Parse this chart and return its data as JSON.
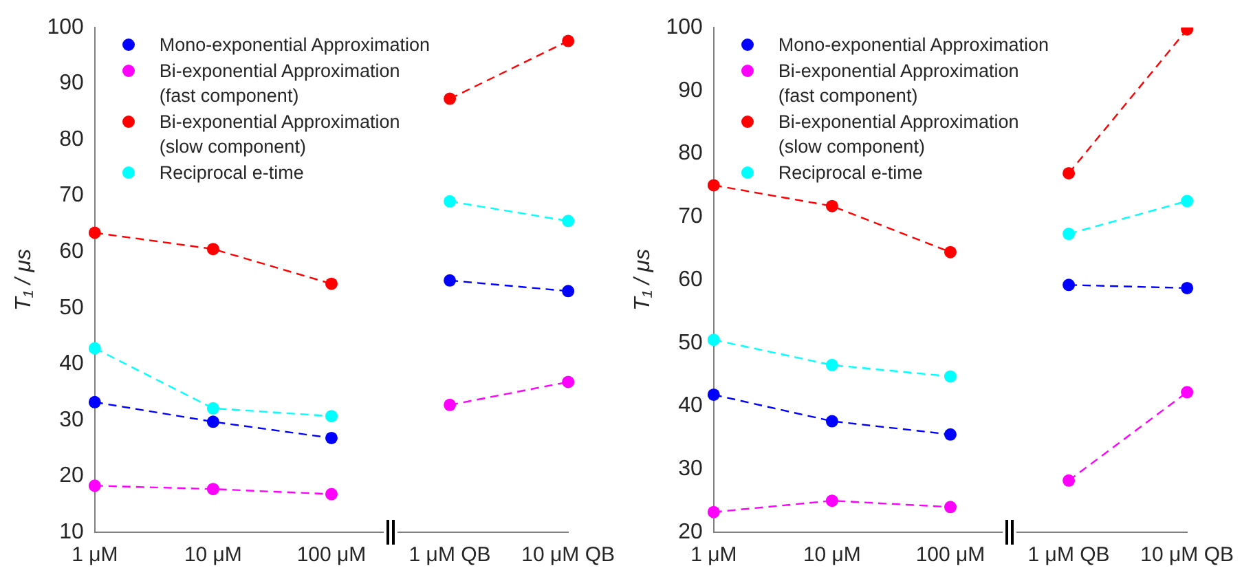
{
  "chart_data": [
    {
      "type": "line",
      "categories": [
        "1 μM",
        "10 μM",
        "100 μM",
        "1 μM QB",
        "10 μM QB"
      ],
      "ylabel": "T₁ / μs",
      "ylim": [
        10,
        100
      ],
      "yticks": [
        10,
        20,
        30,
        40,
        50,
        60,
        70,
        80,
        90,
        100
      ],
      "grid": false,
      "legend": "top left",
      "marker": "circle",
      "line_style": "dashed",
      "series": [
        {
          "name": "Mono-exponential Approximation",
          "color": "#0000ff",
          "values": [
            33.2,
            29.7,
            26.8,
            54.9,
            53.0
          ]
        },
        {
          "name": "Bi-exponential Approximation (fast component)",
          "color": "#ff00ff",
          "values": [
            18.3,
            17.7,
            16.8,
            32.7,
            36.8
          ]
        },
        {
          "name": "Bi-exponential Approximation (slow component)",
          "color": "#ff0000",
          "values": [
            63.4,
            60.5,
            54.3,
            87.3,
            97.6
          ]
        },
        {
          "name": "Reciprocal e-time",
          "color": "#00ffff",
          "values": [
            42.8,
            32.1,
            30.7,
            69.0,
            65.5
          ]
        }
      ]
    },
    {
      "type": "line",
      "categories": [
        "1 μM",
        "10 μM",
        "100 μM",
        "1 μM QB",
        "10 μM QB"
      ],
      "ylabel": "T₁ / μs",
      "ylim": [
        20,
        100
      ],
      "yticks": [
        20,
        30,
        40,
        50,
        60,
        70,
        80,
        90,
        100
      ],
      "grid": false,
      "legend": "top left",
      "marker": "circle",
      "line_style": "dashed",
      "series": [
        {
          "name": "Mono-exponential Approximation",
          "color": "#0000ff",
          "values": [
            41.8,
            37.6,
            35.5,
            59.2,
            58.7
          ]
        },
        {
          "name": "Bi-exponential Approximation (fast component)",
          "color": "#ff00ff",
          "values": [
            23.2,
            25.0,
            24.0,
            28.2,
            42.2
          ]
        },
        {
          "name": "Bi-exponential Approximation (slow component)",
          "color": "#ff0000",
          "values": [
            75.0,
            71.7,
            64.4,
            76.9,
            99.7
          ]
        },
        {
          "name": "Reciprocal e-time",
          "color": "#00ffff",
          "values": [
            50.5,
            46.5,
            44.7,
            67.3,
            72.5
          ]
        }
      ]
    }
  ]
}
